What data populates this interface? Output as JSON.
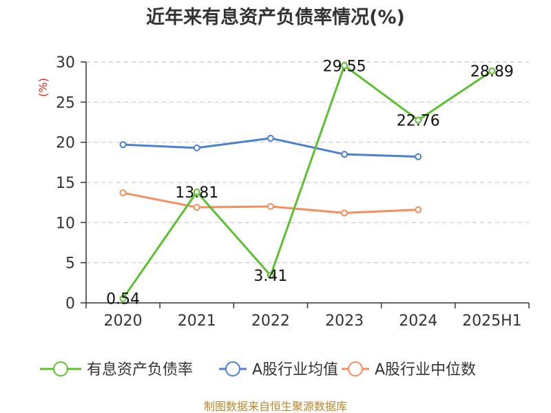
{
  "chart_data": {
    "type": "line",
    "title": "近年来有息资产负债率情况(%)",
    "ylabel": "(%)",
    "xlabel": "",
    "categories": [
      "2020",
      "2021",
      "2022",
      "2023",
      "2024",
      "2025H1"
    ],
    "y_ticks": [
      "0",
      "5",
      "10",
      "15",
      "20",
      "25",
      "30"
    ],
    "ylim": [
      0,
      30
    ],
    "grid": true,
    "legend_position": "bottom",
    "series": [
      {
        "name": "有息资产负债率",
        "color": "#5ac02d",
        "values": [
          0.54,
          13.81,
          3.41,
          29.55,
          22.76,
          28.89
        ],
        "labels": [
          "0.54",
          "13.81",
          "3.41",
          "29.55",
          "22.76",
          "28.89"
        ]
      },
      {
        "name": "A股行业均值",
        "color": "#4a7fd4",
        "values": [
          19.7,
          19.3,
          20.5,
          18.5,
          18.2,
          null
        ]
      },
      {
        "name": "A股行业中位数",
        "color": "#f58d5c",
        "values": [
          13.7,
          11.9,
          12.0,
          11.2,
          11.6,
          null
        ]
      }
    ],
    "source": "制图数据来自恒生聚源数据库"
  }
}
